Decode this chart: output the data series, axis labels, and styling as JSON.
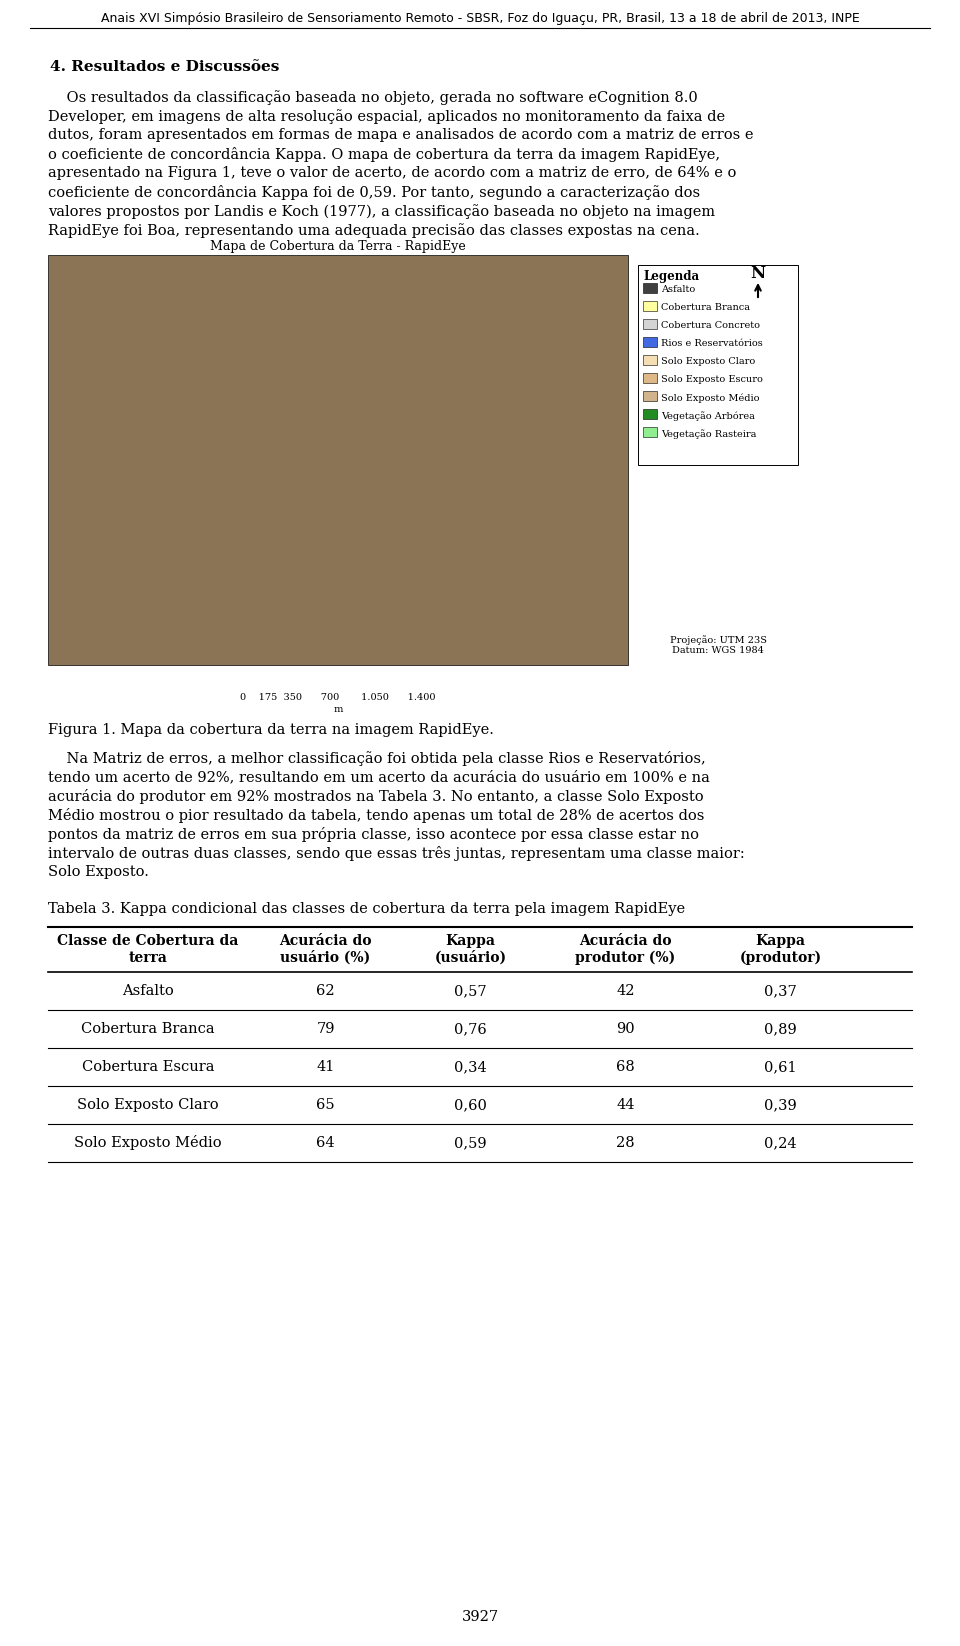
{
  "header": "Anais XVI Simpósio Brasileiro de Sensoriamento Remoto - SBSR, Foz do Iguaçu, PR, Brasil, 13 a 18 de abril de 2013, INPE",
  "section_title": "4. Resultados e Discussões",
  "paragraph1": "Os resultados da classificação baseada no objeto, gerada no software eCognition 8.0 Developer, em imagens de alta resolução espacial, aplicados no monitoramento da faixa de dutos, foram apresentados em formas de mapa e analisados de acordo com a matriz de erros e o coeficiente de concordância Kappa. O mapa de cobertura da terra da imagem RapidEye, apresentado na Figura 1, teve o valor de acerto, de acordo com a matriz de erro, de 64% e o coeficiente de concordância Kappa foi de 0,59. Por tanto, segundo a caracterização dos valores propostos por Landis e Koch (1977), a classificação baseada no objeto na imagem RapidEye foi Boa, representando uma adequada precisão das classes expostas na cena.",
  "figure_caption": "Figura 1. Mapa da cobertura da terra na imagem RapidEye.",
  "paragraph2": "Na Matriz de erros, a melhor classificação foi obtida pela classe Rios e Reservatórios, tendo um acerto de 92%, resultando em um acerto da acurácia do usuário em 100% e na acurácia do produtor em 92% mostrados na Tabela 3. No entanto, a classe Solo Exposto Médio mostrou o pior resultado da tabela, tendo apenas um total de 28% de acertos dos pontos da matriz de erros em sua própria classe, isso acontece por essa classe estar no intervalo de outras duas classes, sendo que essas três juntas, representam uma classe maior: Solo Exposto.",
  "table_title": "Tabela 3. Kappa condicional das classes de cobertura da terra pela imagem RapidEye",
  "table_headers": [
    "Classe de Cobertura da\nterra",
    "Acurácia do\nusuário (%)",
    "Kappa\n(usuário)",
    "Acurácia do\nprodutor (%)",
    "Kappa\n(produtor)"
  ],
  "table_data": [
    [
      "Asfalto",
      "62",
      "0,57",
      "42",
      "0,37"
    ],
    [
      "Cobertura Branca",
      "79",
      "0,76",
      "90",
      "0,89"
    ],
    [
      "Cobertura Escura",
      "41",
      "0,34",
      "68",
      "0,61"
    ],
    [
      "Solo Exposto Claro",
      "65",
      "0,60",
      "44",
      "0,39"
    ],
    [
      "Solo Exposto Médio",
      "64",
      "0,59",
      "28",
      "0,24"
    ]
  ],
  "page_number": "3927",
  "background_color": "#ffffff",
  "text_color": "#000000",
  "map_placeholder_color": "#c8a06e"
}
